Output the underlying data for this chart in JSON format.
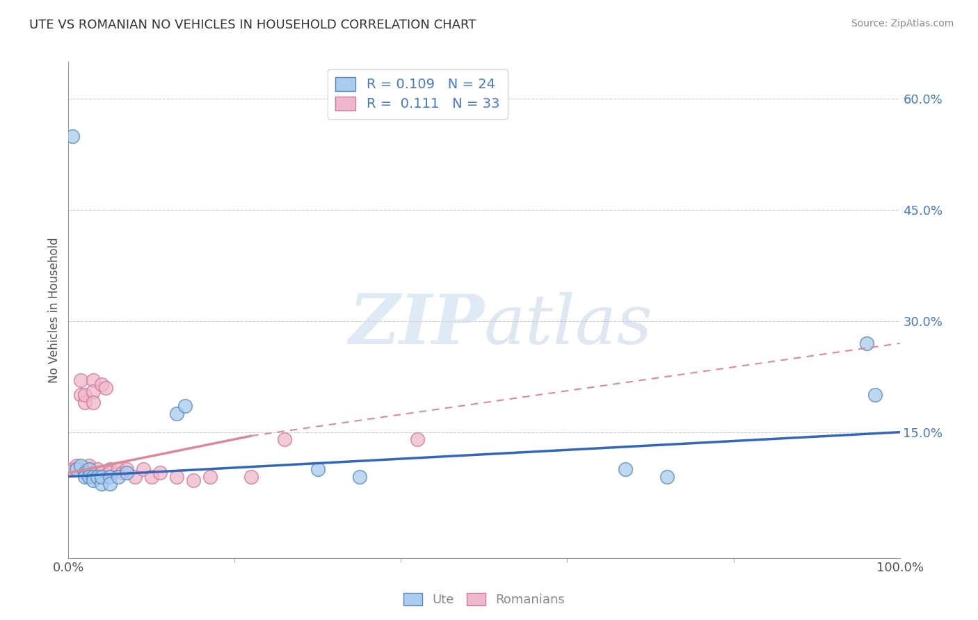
{
  "title": "UTE VS ROMANIAN NO VEHICLES IN HOUSEHOLD CORRELATION CHART",
  "source": "Source: ZipAtlas.com",
  "ylabel": "No Vehicles in Household",
  "legend_ute_r": "0.109",
  "legend_ute_n": "24",
  "legend_rom_r": "0.111",
  "legend_rom_n": "33",
  "ute_scatter_x": [
    0.005,
    0.01,
    0.015,
    0.02,
    0.02,
    0.025,
    0.025,
    0.03,
    0.03,
    0.035,
    0.04,
    0.04,
    0.05,
    0.05,
    0.06,
    0.07,
    0.13,
    0.14,
    0.3,
    0.35,
    0.67,
    0.72,
    0.96,
    0.97
  ],
  "ute_scatter_y": [
    0.55,
    0.1,
    0.105,
    0.095,
    0.09,
    0.1,
    0.09,
    0.09,
    0.085,
    0.09,
    0.08,
    0.09,
    0.09,
    0.08,
    0.09,
    0.095,
    0.175,
    0.185,
    0.1,
    0.09,
    0.1,
    0.09,
    0.27,
    0.2
  ],
  "rom_scatter_x": [
    0.005,
    0.01,
    0.01,
    0.015,
    0.015,
    0.02,
    0.02,
    0.025,
    0.025,
    0.025,
    0.03,
    0.03,
    0.03,
    0.03,
    0.035,
    0.04,
    0.04,
    0.045,
    0.05,
    0.05,
    0.06,
    0.065,
    0.07,
    0.08,
    0.09,
    0.1,
    0.11,
    0.13,
    0.15,
    0.17,
    0.22,
    0.26,
    0.42
  ],
  "rom_scatter_y": [
    0.1,
    0.105,
    0.1,
    0.22,
    0.2,
    0.19,
    0.2,
    0.095,
    0.1,
    0.105,
    0.095,
    0.22,
    0.205,
    0.19,
    0.1,
    0.095,
    0.215,
    0.21,
    0.1,
    0.095,
    0.1,
    0.095,
    0.1,
    0.09,
    0.1,
    0.09,
    0.095,
    0.09,
    0.085,
    0.09,
    0.09,
    0.14,
    0.14
  ],
  "ute_color": "#aaccee",
  "rom_color": "#f0b8cc",
  "ute_edge_color": "#5588bb",
  "rom_edge_color": "#cc7799",
  "ute_line_color": "#3366bb",
  "rom_line_color": "#dd8899",
  "watermark_color": "#ccddf0",
  "bg_color": "#ffffff",
  "grid_color": "#cccccc",
  "legend_text_color": "#4477cc",
  "title_color": "#333333",
  "tick_color": "#4477cc",
  "axis_color": "#999999"
}
